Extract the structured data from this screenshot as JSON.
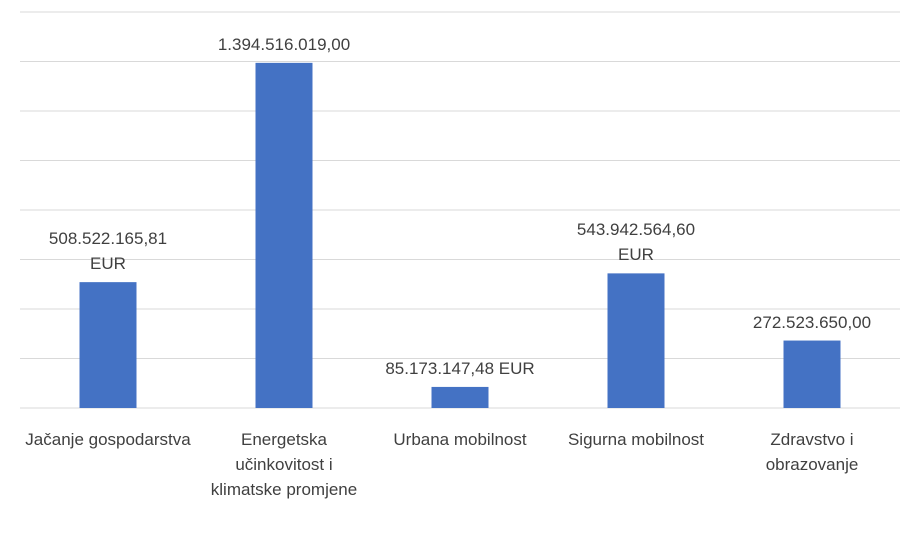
{
  "chart_data": {
    "type": "bar",
    "categories": [
      "Jačanje gospodarstva",
      "Energetska učinkovitost i klimatske promjene",
      "Urbana mobilnost",
      "Sigurna mobilnost",
      "Zdravstvo i obrazovanje"
    ],
    "values": [
      508522165.81,
      1394516019.0,
      85173147.48,
      543942564.6,
      272523650.0
    ],
    "value_labels": [
      "508.522.165,81 EUR",
      "1.394.516.019,00",
      "85.173.147,48 EUR",
      "543.942.564,60 EUR",
      "272.523.650,00"
    ],
    "color": "#4472c4",
    "ylim": [
      0,
      1600000000
    ],
    "yticks": [
      0,
      200000000,
      400000000,
      600000000,
      800000000,
      1000000000,
      1200000000,
      1400000000,
      1600000000
    ],
    "grid": true
  }
}
